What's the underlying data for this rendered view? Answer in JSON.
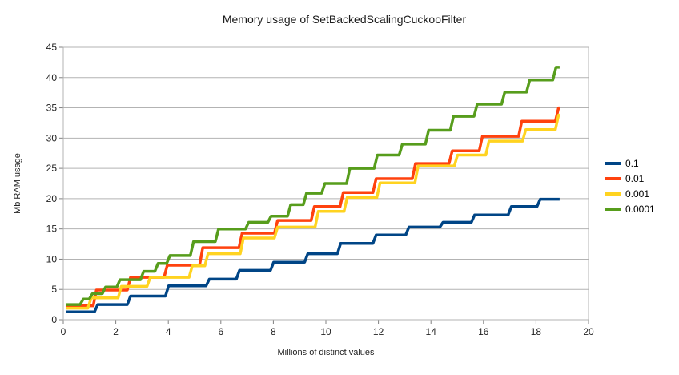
{
  "chart_data": {
    "type": "line",
    "title": "Memory usage of SetBackedScalingCuckooFilter",
    "xlabel": "Millions of distinct values",
    "ylabel": "Mb RAM usage",
    "xlim": [
      0,
      20
    ],
    "ylim": [
      0,
      45
    ],
    "x_ticks": [
      0,
      2,
      4,
      6,
      8,
      10,
      12,
      14,
      16,
      18,
      20
    ],
    "y_ticks": [
      0,
      5,
      10,
      15,
      20,
      25,
      30,
      35,
      40,
      45
    ],
    "grid": "horizontal",
    "legend_position": "right",
    "line_style": "step-after",
    "x_end": 18.9,
    "colors": {
      "grid": "#b3b3b3",
      "plot_border": "#b3b3b3",
      "tick": "#808080",
      "label": "#222222",
      "title": "#1a1a1a",
      "background": "#ffffff"
    },
    "series": [
      {
        "name": "0.1",
        "color": "#004586",
        "points": [
          [
            0.1,
            1.3
          ],
          [
            1.25,
            2.5
          ],
          [
            2.5,
            3.9
          ],
          [
            3.95,
            5.6
          ],
          [
            5.5,
            6.7
          ],
          [
            6.65,
            8.15
          ],
          [
            7.95,
            9.5
          ],
          [
            9.25,
            10.9
          ],
          [
            10.5,
            12.6
          ],
          [
            11.85,
            14.0
          ],
          [
            13.1,
            15.3
          ],
          [
            14.4,
            16.1
          ],
          [
            15.6,
            17.3
          ],
          [
            17.0,
            18.7
          ],
          [
            18.1,
            19.9
          ]
        ]
      },
      {
        "name": "0.01",
        "color": "#ff420e",
        "points": [
          [
            0.1,
            2.3
          ],
          [
            1.2,
            4.9
          ],
          [
            2.5,
            7.0
          ],
          [
            3.9,
            9.0
          ],
          [
            5.25,
            11.9
          ],
          [
            6.75,
            14.3
          ],
          [
            8.1,
            16.4
          ],
          [
            9.5,
            18.7
          ],
          [
            10.6,
            21.0
          ],
          [
            11.85,
            23.3
          ],
          [
            13.35,
            25.8
          ],
          [
            14.75,
            27.9
          ],
          [
            15.9,
            30.3
          ],
          [
            17.4,
            32.8
          ],
          [
            18.8,
            35.0
          ]
        ]
      },
      {
        "name": "0.001",
        "color": "#ffd320",
        "points": [
          [
            0.1,
            1.9
          ],
          [
            1.0,
            3.6
          ],
          [
            2.15,
            5.5
          ],
          [
            3.25,
            7.0
          ],
          [
            4.85,
            8.9
          ],
          [
            5.45,
            10.9
          ],
          [
            6.8,
            13.5
          ],
          [
            8.1,
            15.3
          ],
          [
            9.65,
            17.9
          ],
          [
            10.75,
            20.2
          ],
          [
            12.0,
            22.6
          ],
          [
            13.45,
            25.4
          ],
          [
            14.95,
            27.2
          ],
          [
            16.15,
            29.5
          ],
          [
            17.55,
            31.4
          ],
          [
            18.8,
            33.8
          ]
        ]
      },
      {
        "name": "0.0001",
        "color": "#579d1c",
        "points": [
          [
            0.1,
            2.5
          ],
          [
            0.7,
            3.4
          ],
          [
            1.05,
            4.3
          ],
          [
            1.55,
            5.4
          ],
          [
            2.1,
            6.6
          ],
          [
            3.0,
            8.0
          ],
          [
            3.55,
            9.3
          ],
          [
            4.0,
            10.6
          ],
          [
            4.9,
            12.9
          ],
          [
            5.85,
            15.0
          ],
          [
            7.0,
            16.1
          ],
          [
            7.85,
            17.1
          ],
          [
            8.6,
            19.0
          ],
          [
            9.2,
            20.9
          ],
          [
            9.9,
            22.5
          ],
          [
            10.85,
            25.0
          ],
          [
            11.9,
            27.2
          ],
          [
            12.85,
            29.0
          ],
          [
            13.85,
            31.3
          ],
          [
            14.8,
            33.6
          ],
          [
            15.7,
            35.6
          ],
          [
            16.75,
            37.6
          ],
          [
            17.7,
            39.6
          ],
          [
            18.7,
            41.7
          ]
        ]
      }
    ]
  }
}
